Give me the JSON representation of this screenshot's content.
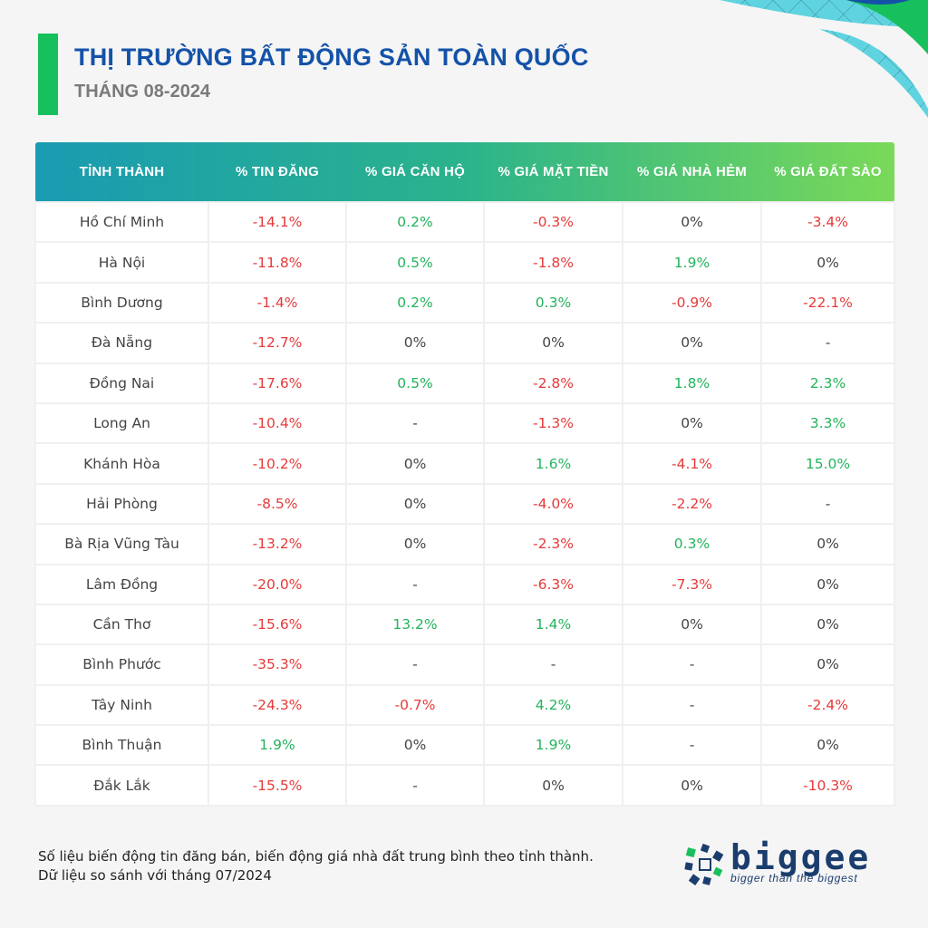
{
  "header": {
    "title": "THỊ TRƯỜNG BẤT ĐỘNG SẢN TOÀN QUỐC",
    "subtitle": "THÁNG 08-2024"
  },
  "chart_data": {
    "type": "table",
    "columns": [
      "TỈNH THÀNH",
      "% TIN ĐĂNG",
      "% GIÁ CĂN HỘ",
      "% GIÁ MẶT TIỀN",
      "% GIÁ NHÀ HẺM",
      "% GIÁ ĐẤT SÀO"
    ],
    "rows": [
      [
        "Hồ Chí Minh",
        "-14.1%",
        "0.2%",
        "-0.3%",
        "0%",
        "-3.4%"
      ],
      [
        "Hà Nội",
        "-11.8%",
        "0.5%",
        "-1.8%",
        "1.9%",
        "0%"
      ],
      [
        "Bình Dương",
        "-1.4%",
        "0.2%",
        "0.3%",
        "-0.9%",
        "-22.1%"
      ],
      [
        "Đà Nẵng",
        "-12.7%",
        "0%",
        "0%",
        "0%",
        "-"
      ],
      [
        "Đồng Nai",
        "-17.6%",
        "0.5%",
        "-2.8%",
        "1.8%",
        "2.3%"
      ],
      [
        "Long An",
        "-10.4%",
        "-",
        "-1.3%",
        "0%",
        "3.3%"
      ],
      [
        "Khánh Hòa",
        "-10.2%",
        "0%",
        "1.6%",
        "-4.1%",
        "15.0%"
      ],
      [
        "Hải Phòng",
        "-8.5%",
        "0%",
        "-4.0%",
        "-2.2%",
        "-"
      ],
      [
        "Bà Rịa Vũng Tàu",
        "-13.2%",
        "0%",
        "-2.3%",
        "0.3%",
        "0%"
      ],
      [
        "Lâm Đồng",
        "-20.0%",
        "-",
        "-6.3%",
        "-7.3%",
        "0%"
      ],
      [
        "Cần Thơ",
        "-15.6%",
        "13.2%",
        "1.4%",
        "0%",
        "0%"
      ],
      [
        "Bình Phước",
        "-35.3%",
        "-",
        "-",
        "-",
        "0%"
      ],
      [
        "Tây Ninh",
        "-24.3%",
        "-0.7%",
        "4.2%",
        "-",
        "-2.4%"
      ],
      [
        "Bình Thuận",
        "1.9%",
        "0%",
        "1.9%",
        "-",
        "0%"
      ],
      [
        "Đắk Lắk",
        "-15.5%",
        "-",
        "0%",
        "0%",
        "-10.3%"
      ]
    ]
  },
  "footer": {
    "line1": "Số liệu biến động tin đăng bán, biến động giá nhà đất trung bình theo tỉnh thành.",
    "line2": "Dữ liệu so sánh với tháng 07/2024"
  },
  "logo": {
    "word": "biggee",
    "tagline": "bigger than the biggest"
  },
  "colors": {
    "negative": "#e53a3a",
    "positive": "#23b35c",
    "title": "#1452a8",
    "accent": "#17c05c"
  }
}
